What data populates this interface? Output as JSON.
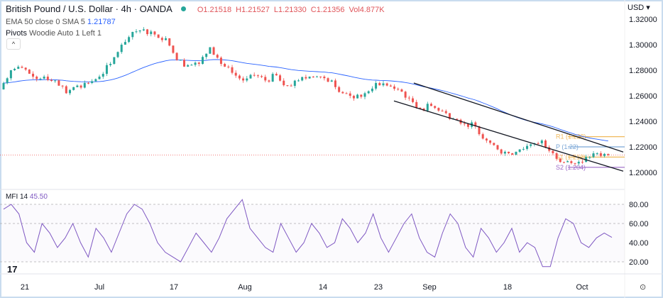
{
  "header": {
    "symbol": "British Pound / U.S. Dollar · 4h · OANDA",
    "open": "O1.21518",
    "high": "H1.21527",
    "low": "L1.21330",
    "close": "C1.21356",
    "volume": "Vol4.877K"
  },
  "indicators": {
    "ema_label": "EMA 50 close 0 SMA 5",
    "ema_value": "1.21787",
    "pivots_label": "Pivots",
    "pivots_params": "Woodie Auto 1 Left 1",
    "collapse": "^",
    "mfi_label": "MFI 14",
    "mfi_value": "45.50"
  },
  "currency": "USD ▾",
  "logo": "17",
  "settings_icon": "⊙",
  "colors": {
    "up": "#26a69a",
    "down": "#ef5350",
    "ema": "#2962ff",
    "mfi": "#7e57c2",
    "r1": "#f0b95b",
    "p": "#7aa6d6",
    "s1": "#f0b95b",
    "s2": "#9c6ac7",
    "channel": "#131722"
  },
  "chart_data": [
    {
      "type": "candlestick",
      "title": "British Pound / U.S. Dollar · 4h · OANDA",
      "ylim": [
        1.195,
        1.325
      ],
      "yticks": [
        "1.32000",
        "1.30000",
        "1.28000",
        "1.26000",
        "1.24000",
        "1.22000",
        "1.20000"
      ],
      "ytick_values": [
        1.32,
        1.3,
        1.28,
        1.26,
        1.24,
        1.22,
        1.2
      ],
      "xticks": [
        "21",
        "Jul",
        "17",
        "Aug",
        "14",
        "23",
        "Sep",
        "18",
        "Oct"
      ],
      "closes": [
        1.265,
        1.28,
        1.282,
        1.275,
        1.275,
        1.272,
        1.262,
        1.268,
        1.27,
        1.275,
        1.285,
        1.3,
        1.31,
        1.312,
        1.308,
        1.305,
        1.288,
        1.284,
        1.285,
        1.298,
        1.285,
        1.278,
        1.272,
        1.276,
        1.272,
        1.276,
        1.268,
        1.272,
        1.275,
        1.275,
        1.272,
        1.262,
        1.258,
        1.262,
        1.27,
        1.268,
        1.265,
        1.258,
        1.25,
        1.252,
        1.248,
        1.242,
        1.238,
        1.236,
        1.225,
        1.218,
        1.215,
        1.218,
        1.222,
        1.225,
        1.215,
        1.208,
        1.207,
        1.212,
        1.215,
        1.2136
      ],
      "last_close": 1.21356,
      "ema": {
        "label": "EMA 50",
        "value": 1.21787
      },
      "pivots": [
        {
          "label": "R1 (1.228)",
          "value": 1.228
        },
        {
          "label": "P (1.22)",
          "value": 1.22
        },
        {
          "label": "S1 (1.212)",
          "value": 1.212
        },
        {
          "label": "S2 (1.204)",
          "value": 1.204
        }
      ],
      "channel": {
        "upper": [
          1.27,
          1.216
        ],
        "lower": [
          1.256,
          1.201
        ]
      }
    },
    {
      "type": "line",
      "title": "MFI 14",
      "ylim": [
        0,
        100
      ],
      "yticks": [
        "80.00",
        "60.00",
        "40.00",
        "20.00"
      ],
      "ytick_values": [
        80,
        60,
        40,
        20
      ],
      "values": [
        75,
        80,
        70,
        40,
        30,
        60,
        50,
        35,
        45,
        60,
        40,
        25,
        55,
        45,
        30,
        50,
        70,
        80,
        75,
        60,
        40,
        30,
        25,
        20,
        35,
        50,
        40,
        30,
        45,
        65,
        75,
        85,
        55,
        45,
        35,
        30,
        60,
        45,
        30,
        40,
        60,
        50,
        35,
        40,
        65,
        55,
        40,
        50,
        70,
        45,
        30,
        45,
        60,
        70,
        45,
        30,
        25,
        50,
        70,
        60,
        35,
        25,
        55,
        45,
        30,
        40,
        55,
        30,
        40,
        35,
        15,
        15,
        45,
        65,
        60,
        40,
        35,
        45,
        50,
        45.5
      ]
    }
  ]
}
